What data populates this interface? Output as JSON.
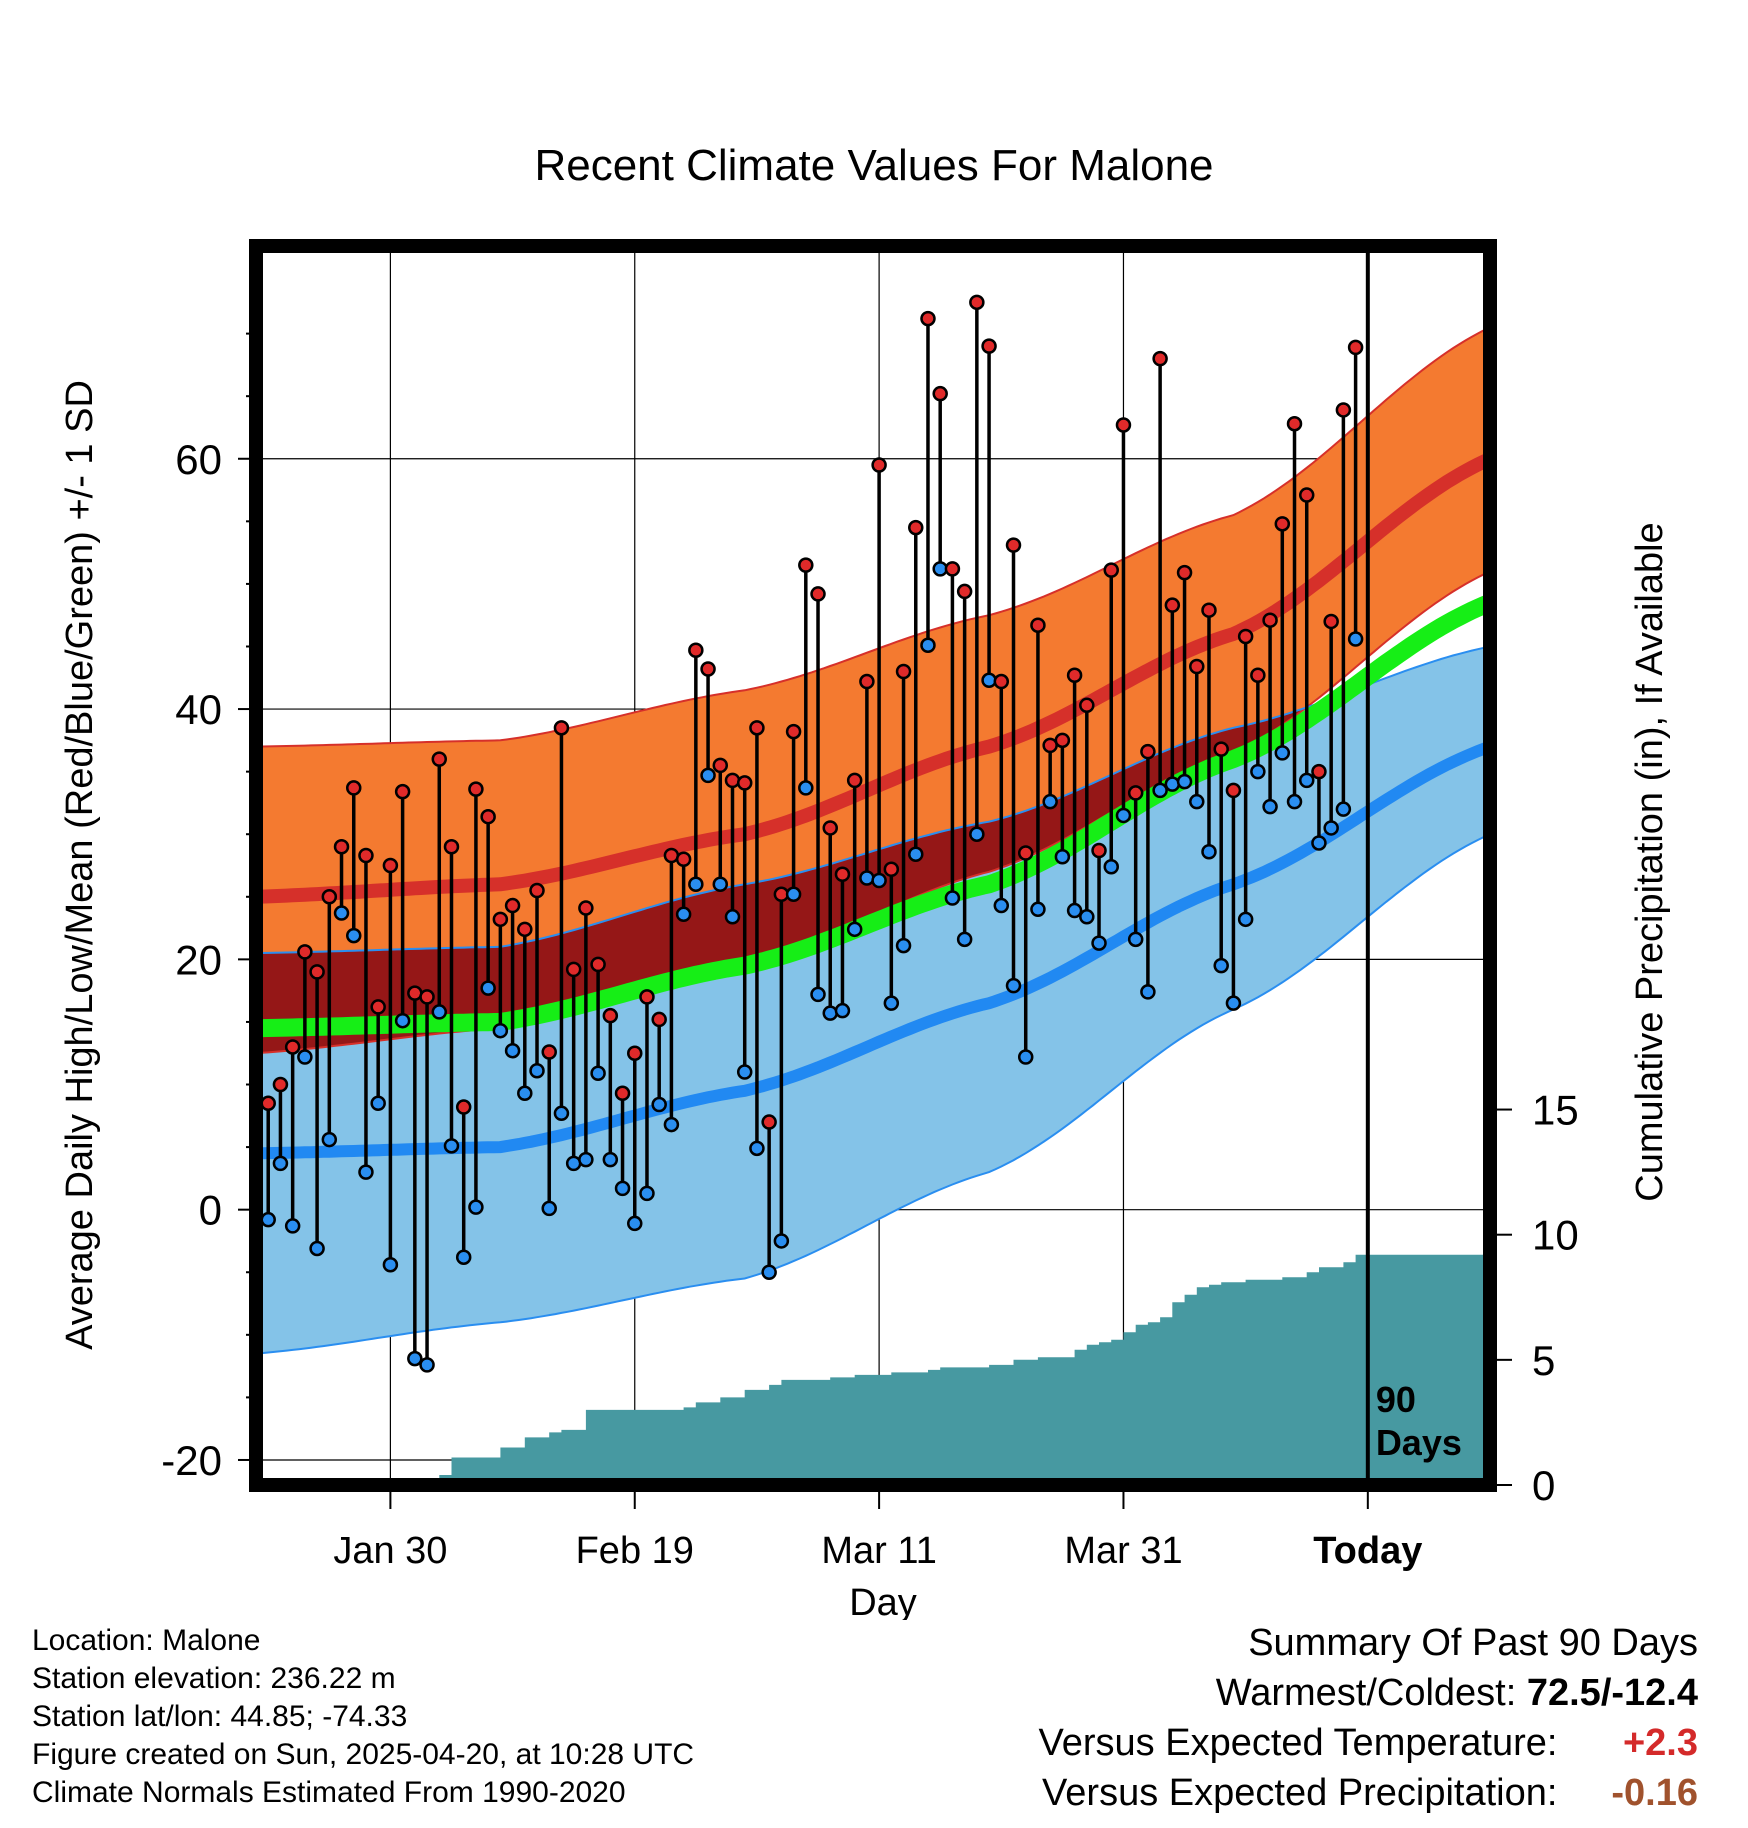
{
  "title": "Recent Climate Values For Malone",
  "chart_data": {
    "type": "line",
    "title": "Recent Climate Values For Malone",
    "xlabel": "Day",
    "ylabel": "Average Daily High/Low/Mean (Red/Blue/Green) +/- 1 SD",
    "y2label": "Cumulative Precipitation (in), If Available",
    "x_tick_labels": [
      "Jan 30",
      "Feb 19",
      "Mar 11",
      "Mar 31",
      "Today"
    ],
    "x_tick_days": [
      11,
      31,
      51,
      71,
      91
    ],
    "xlim": [
      0,
      101
    ],
    "ylim": [
      -22,
      77
    ],
    "y_ticks": [
      -20,
      0,
      20,
      40,
      60
    ],
    "y2_ticks": [
      0,
      5,
      10,
      15
    ],
    "y2lim": [
      0,
      49.5
    ],
    "grid": true,
    "today_marker": {
      "day": 91,
      "label_line1": "90",
      "label_line2": "Days"
    },
    "normals": {
      "high_mean": {
        "days": [
          0,
          20,
          40,
          60,
          80,
          101
        ],
        "values": [
          25,
          26,
          30,
          37,
          46,
          60
        ]
      },
      "high_upper": {
        "days": [
          0,
          20,
          40,
          60,
          80,
          101
        ],
        "values": [
          37,
          37.5,
          41.5,
          47.5,
          55.5,
          70.5
        ]
      },
      "high_lower": {
        "days": [
          0,
          20,
          40,
          60,
          80,
          101
        ],
        "values": [
          12.5,
          14.5,
          19.5,
          27,
          36.5,
          51
        ]
      },
      "mean": {
        "days": [
          0,
          20,
          40,
          60,
          80,
          101
        ],
        "values": [
          14.5,
          15,
          19.5,
          26,
          36,
          48.5
        ]
      },
      "low_mean": {
        "days": [
          0,
          20,
          40,
          60,
          80,
          101
        ],
        "values": [
          4.5,
          5,
          9.5,
          16.5,
          26,
          37
        ]
      },
      "low_upper": {
        "days": [
          0,
          20,
          40,
          60,
          80,
          101
        ],
        "values": [
          20.5,
          21,
          26,
          31,
          38.5,
          45
        ]
      },
      "low_lower": {
        "days": [
          0,
          20,
          40,
          60,
          80,
          101
        ],
        "values": [
          -11.5,
          -9,
          -5.5,
          3,
          16,
          30
        ]
      }
    },
    "series": [
      {
        "name": "High",
        "color": "#e02a2a",
        "values": [
          8.5,
          10,
          13,
          20.6,
          19,
          25,
          29,
          33.7,
          28.3,
          16.2,
          27.5,
          33.4,
          17.3,
          17,
          36,
          29,
          8.2,
          33.6,
          31.4,
          23.2,
          24.3,
          22.4,
          25.5,
          12.6,
          38.5,
          19.2,
          24.1,
          19.6,
          15.5,
          9.3,
          12.5,
          17,
          15.2,
          28.3,
          28,
          44.7,
          43.2,
          35.5,
          34.3,
          34.1,
          38.5,
          7,
          25.2,
          38.2,
          51.5,
          49.2,
          30.5,
          26.8,
          34.3,
          42.2,
          59.5,
          27.2,
          43,
          54.5,
          71.2,
          65.2,
          51.2,
          49.4,
          72.5,
          69,
          42.2,
          53.1,
          28.5,
          46.7,
          37.1,
          37.5,
          42.7,
          40.3,
          28.7,
          51.1,
          62.7,
          33.3,
          36.6,
          68,
          48.3,
          50.9,
          43.4,
          47.9,
          36.8,
          33.5,
          45.8,
          42.7,
          47.1,
          54.8,
          62.8,
          57.1,
          35,
          47,
          63.9,
          68.9
        ]
      },
      {
        "name": "Low",
        "color": "#2a8ef0",
        "values": [
          -0.8,
          3.7,
          -1.3,
          12.2,
          -3.1,
          5.6,
          23.7,
          21.9,
          3,
          8.5,
          -4.4,
          15.1,
          -11.9,
          -12.4,
          15.8,
          5.1,
          -3.8,
          0.2,
          17.7,
          14.3,
          12.7,
          9.3,
          11.1,
          0.1,
          7.7,
          3.7,
          4,
          10.9,
          4,
          1.7,
          -1.1,
          1.3,
          8.4,
          6.8,
          23.6,
          26,
          34.7,
          26,
          23.4,
          11,
          4.9,
          -5,
          -2.5,
          25.2,
          33.7,
          17.2,
          15.7,
          15.9,
          22.4,
          26.5,
          26.3,
          16.5,
          21.1,
          28.4,
          45.1,
          51.2,
          24.9,
          21.6,
          30,
          42.3,
          24.3,
          17.9,
          12.2,
          24,
          32.6,
          28.2,
          23.9,
          23.4,
          21.3,
          27.4,
          31.5,
          21.6,
          17.4,
          33.5,
          34,
          34.2,
          32.6,
          28.6,
          19.5,
          16.5,
          23.2,
          35,
          32.2,
          36.5,
          32.6,
          34.3,
          29.3,
          30.5,
          32,
          45.6
        ]
      },
      {
        "name": "Cumulative Precipitation",
        "color": "#4799a1",
        "days": [
          0,
          10,
          12,
          13,
          14,
          15,
          16,
          20,
          22,
          24,
          25,
          27,
          30,
          31,
          35,
          36,
          38,
          40,
          42,
          43,
          47,
          49,
          52,
          55,
          56,
          60,
          62,
          64,
          67,
          68,
          69,
          70,
          71,
          72,
          73,
          74,
          75,
          76,
          77,
          78,
          79,
          81,
          84,
          86,
          87,
          89,
          90,
          93,
          101
        ],
        "values": [
          0,
          0,
          0.1,
          0.15,
          0.2,
          0.4,
          1.1,
          1.5,
          1.9,
          2.1,
          2.2,
          3.0,
          3.0,
          3.0,
          3.1,
          3.3,
          3.5,
          3.8,
          4.0,
          4.2,
          4.3,
          4.4,
          4.5,
          4.6,
          4.7,
          4.8,
          5.0,
          5.1,
          5.4,
          5.6,
          5.7,
          5.8,
          6.1,
          6.4,
          6.5,
          6.7,
          7.3,
          7.6,
          7.9,
          8.0,
          8.1,
          8.2,
          8.3,
          8.5,
          8.7,
          8.9,
          9.2,
          9.2,
          9.2
        ]
      }
    ]
  },
  "footer": {
    "location": "Location: Malone",
    "elevation": "Station elevation: 236.22 m",
    "latlon": "Station lat/lon: 44.85; -74.33",
    "created": "Figure created on Sun, 2025-04-20, at 10:28 UTC",
    "normals": "Climate Normals Estimated From 1990-2020"
  },
  "summary": {
    "heading": "Summary Of Past 90 Days",
    "warmest_coldest_label": "Warmest/Coldest: ",
    "warmest_coldest_value": "72.5/-12.4",
    "temp_label": "Versus Expected Temperature: ",
    "temp_value": "+2.3",
    "temp_color": "#d42a2a",
    "precip_label": "Versus Expected Precipitation: ",
    "precip_value": "-0.16",
    "precip_color": "#a0522d"
  }
}
